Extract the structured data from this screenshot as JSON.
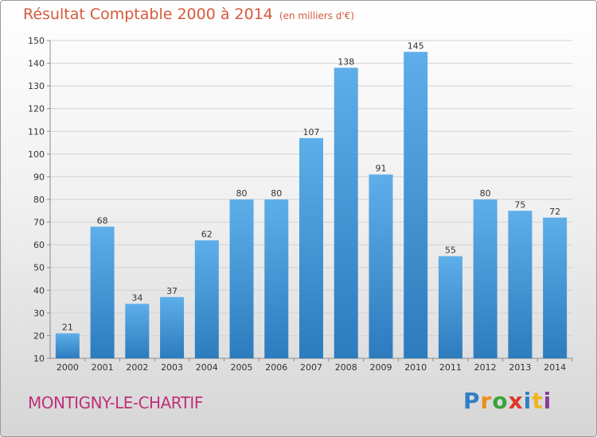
{
  "header": {
    "title": "Résultat Comptable 2000 à 2014",
    "subtitle": "(en milliers d'€)"
  },
  "footer": {
    "commune": "MONTIGNY-LE-CHARTIF",
    "logo": {
      "letters": [
        "P",
        "r",
        "o",
        "x",
        "i",
        "t",
        "i"
      ],
      "colors": [
        "#2f7fc6",
        "#f08c1d",
        "#3aa53a",
        "#e2342b",
        "#2f7fc6",
        "#f0b51d",
        "#8c3a9a"
      ]
    }
  },
  "colors": {
    "title": "#d45b3c",
    "commune": "#c0307a",
    "bar_top": "#5eaeea",
    "bar_bottom": "#2c7cbe",
    "grid": "#d2d2d2",
    "axis": "#8a8a8a",
    "tick_text": "#333333",
    "value_text": "#333333"
  },
  "chart_data": {
    "type": "bar",
    "title": "Résultat Comptable 2000 à 2014",
    "subtitle": "(en milliers d'€)",
    "xlabel": "",
    "ylabel": "",
    "categories": [
      "2000",
      "2001",
      "2002",
      "2003",
      "2004",
      "2005",
      "2006",
      "2007",
      "2008",
      "2009",
      "2010",
      "2011",
      "2012",
      "2013",
      "2014"
    ],
    "values": [
      21,
      68,
      34,
      37,
      62,
      80,
      80,
      107,
      138,
      91,
      145,
      55,
      80,
      75,
      72
    ],
    "value_labels": [
      "21",
      "68",
      "34",
      "37",
      "62",
      "80",
      "80",
      "107",
      "138",
      "91",
      "145",
      "55",
      "80",
      "75",
      "72"
    ],
    "ylim": [
      10,
      150
    ],
    "yticks": [
      10,
      20,
      30,
      40,
      50,
      60,
      70,
      80,
      90,
      100,
      110,
      120,
      130,
      140,
      150
    ],
    "ytick_labels": [
      "10",
      "20",
      "30",
      "40",
      "50",
      "60",
      "70",
      "80",
      "90",
      "100",
      "110",
      "120",
      "130",
      "140",
      "150"
    ],
    "grid": true,
    "legend": "none"
  }
}
